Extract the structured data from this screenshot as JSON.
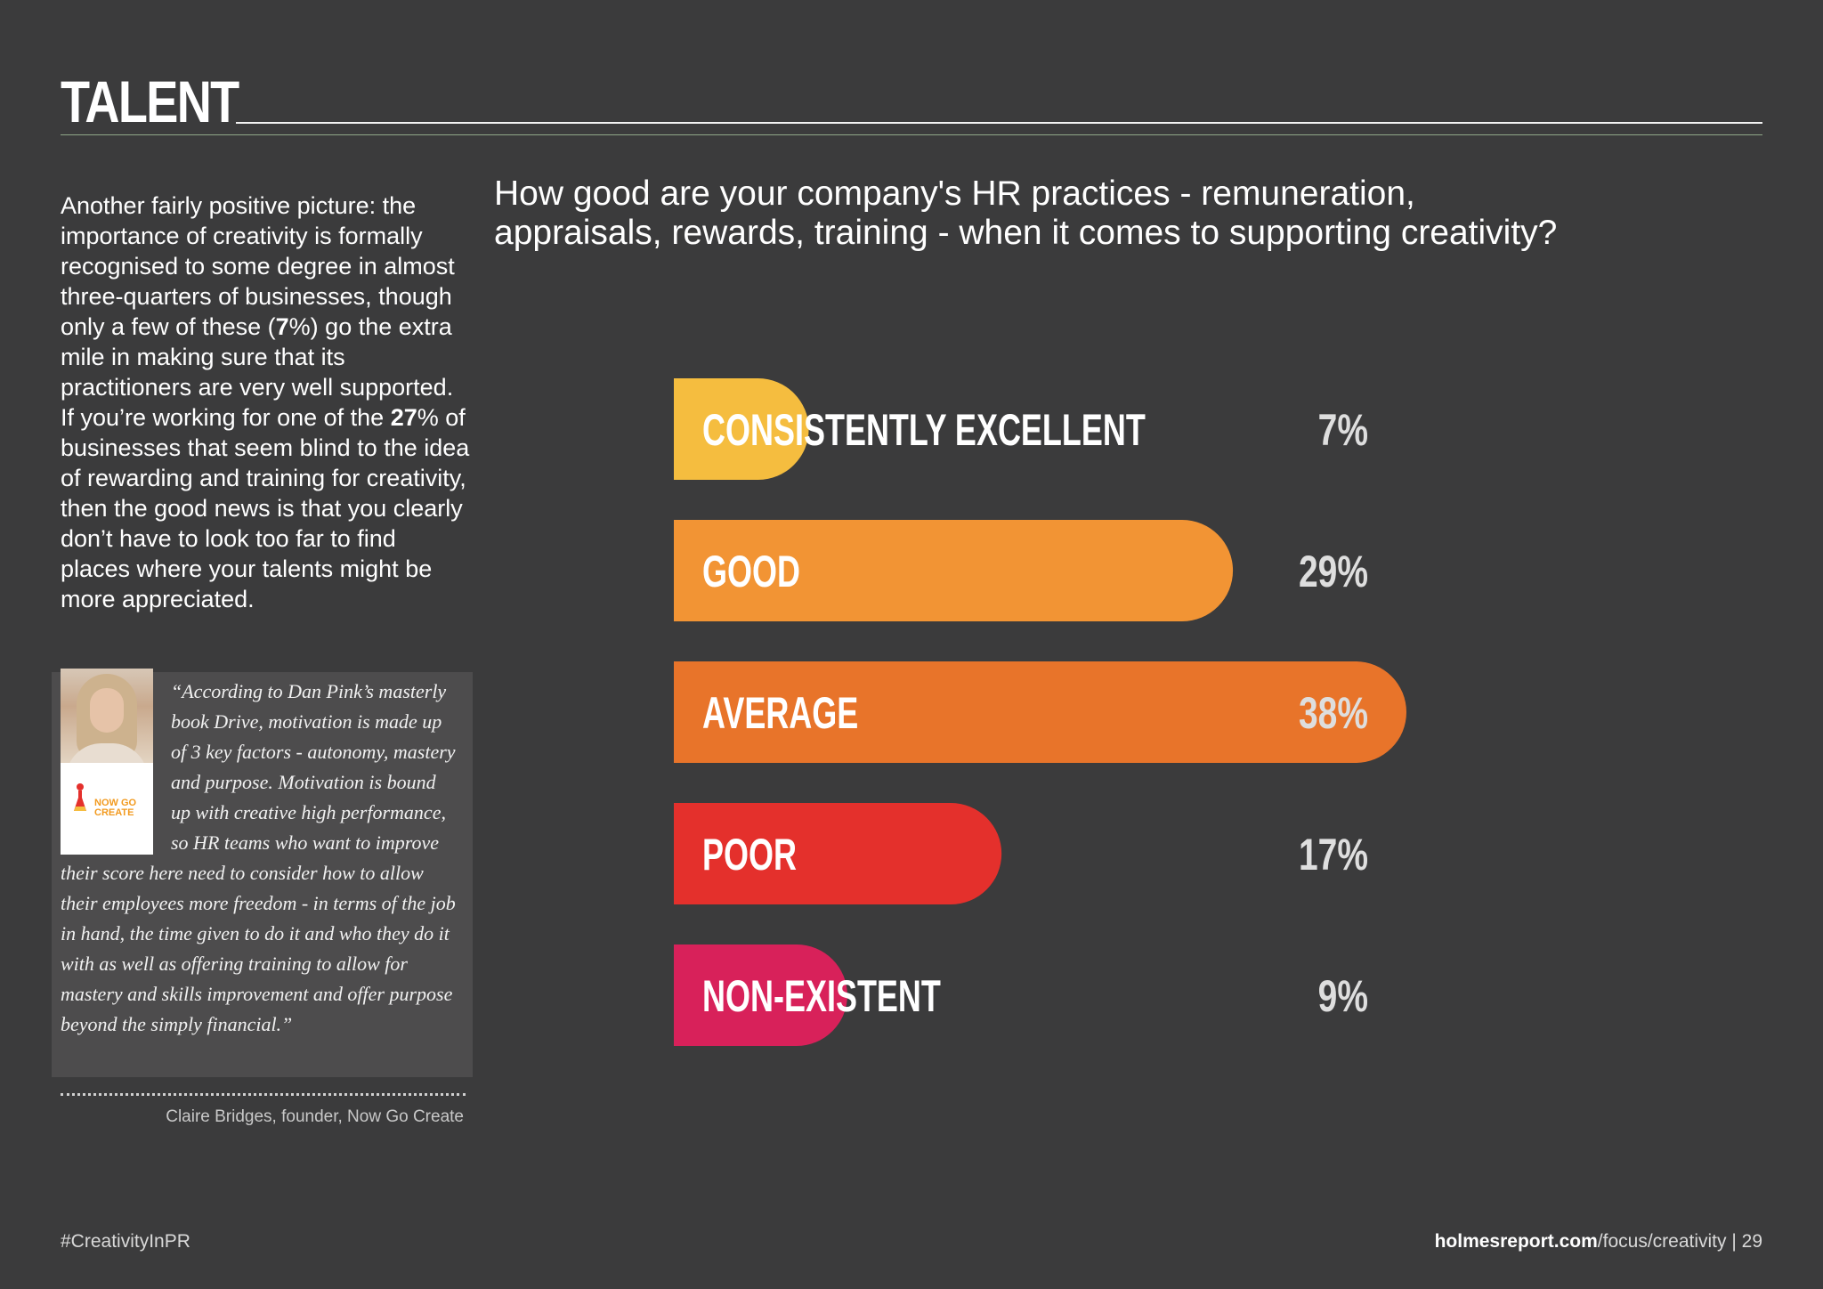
{
  "page": {
    "section_title": "TALENT",
    "background": "#3b3b3c"
  },
  "intro": {
    "parts": [
      "Another fairly positive picture: the importance of creativity is formally recognised to some degree in almost three-quarters of businesses, though only a few of these (",
      "7",
      "%) go the extra mile in making sure that its practitioners are very well supported. If you’re working for one of the ",
      "27",
      "% of businesses that seem blind to the idea of rewarding and training for creativity, then the good news is that you clearly don’t have to look too far to find places where your talents might be more appreciated."
    ]
  },
  "quote": {
    "text": "“According to Dan Pink’s masterly book Drive, motivation is made up of 3 key factors - autonomy, mastery and purpose. Motivation is bound up with creative high performance, so HR teams who want to improve their score here need to consider how to allow their employees more freedom - in terms of the job in hand, the time given to do it and who they do it with as well as offering training to allow for mastery and skills improvement and offer purpose beyond the simply financial.”",
    "attribution": "Claire Bridges, founder, Now Go Create",
    "logo_text_line1": "NOW GO",
    "logo_text_line2": "CREATE",
    "portrait_icon": "portrait-photo"
  },
  "question": "How good are your company's HR practices - remuneration, appraisals, rewards, training - when it comes to supporting creativity?",
  "chart_data": {
    "type": "bar",
    "orientation": "horizontal",
    "categories": [
      "CONSISTENTLY EXCELLENT",
      "GOOD",
      "AVERAGE",
      "POOR",
      "NON-EXISTENT"
    ],
    "values": [
      7,
      29,
      38,
      17,
      9
    ],
    "value_labels": [
      "7%",
      "29%",
      "38%",
      "17%",
      "9%"
    ],
    "colors": [
      "#f5bd3f",
      "#f29434",
      "#e8742a",
      "#e4302c",
      "#d8215a"
    ],
    "unit": "%",
    "title": "",
    "xlabel": "",
    "ylabel": "",
    "grid": false,
    "legend": "none"
  },
  "footer": {
    "hashtag": "#CreativityInPR",
    "site_bold": "holmesreport.com",
    "site_rest": "/focus/creativity",
    "separator": " | ",
    "page_number": "29"
  }
}
